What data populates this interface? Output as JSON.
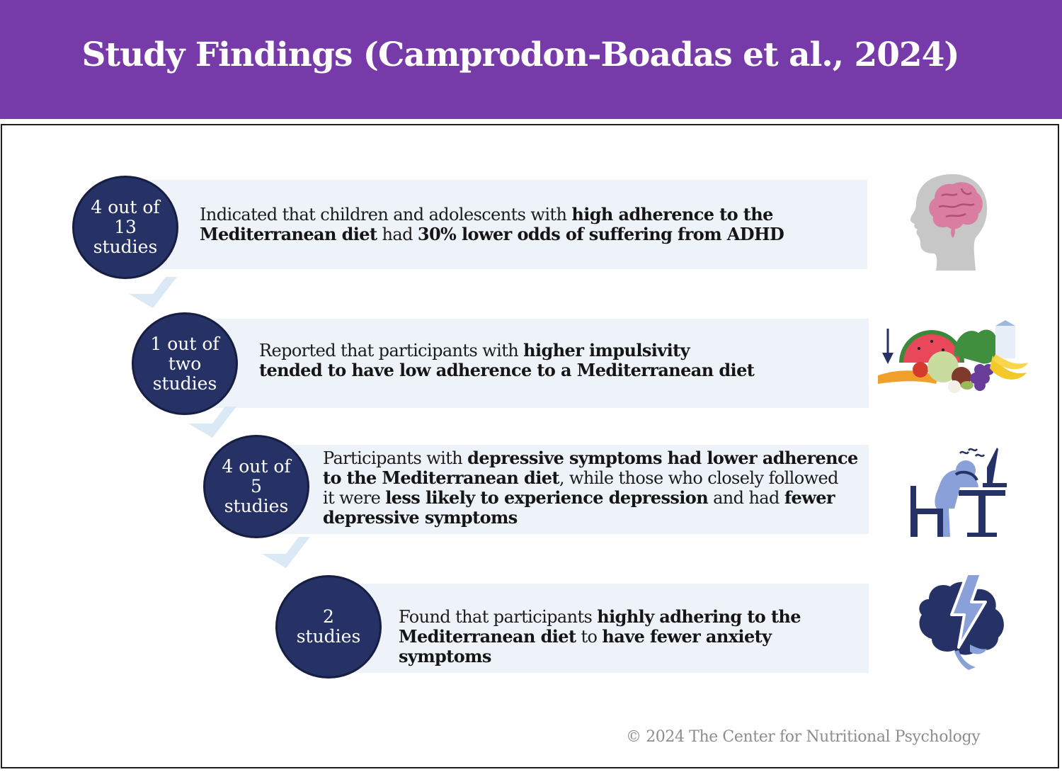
{
  "header": {
    "title": "Study Findings (Camprodon-Boadas et al., 2024)"
  },
  "findings": [
    {
      "count_lines": [
        "4 out of",
        "13",
        "studies"
      ],
      "segments": [
        {
          "text": "Indicated that children and adolescents with ",
          "style": "plain"
        },
        {
          "text": "high adherence to the",
          "style": "bold"
        },
        {
          "text": "\n",
          "style": "break"
        },
        {
          "text": "Mediterranean diet",
          "style": "bold"
        },
        {
          "text": " had ",
          "style": "plain"
        },
        {
          "text": "30% lower odds of suffering from ADHD",
          "style": "highlight"
        }
      ],
      "icon": "child-head-brain-icon"
    },
    {
      "count_lines": [
        "1 out of",
        "two",
        "studies"
      ],
      "segments": [
        {
          "text": "Reported that participants with ",
          "style": "plain"
        },
        {
          "text": "higher impulsivity",
          "style": "highlight"
        },
        {
          "text": "\n",
          "style": "break"
        },
        {
          "text": "tended to have low adherence to a Mediterranean diet",
          "style": "highlight"
        }
      ],
      "icon": "mediterranean-food-icon"
    },
    {
      "count_lines": [
        "4 out of",
        "5",
        "studies"
      ],
      "segments": [
        {
          "text": "Participants with ",
          "style": "plain"
        },
        {
          "text": "depressive symptoms",
          "style": "highlight"
        },
        {
          "text": " had lower adherence",
          "style": "bold"
        },
        {
          "text": "\n",
          "style": "break"
        },
        {
          "text": "to the Mediterranean diet",
          "style": "bold"
        },
        {
          "text": ", while those who closely followed",
          "style": "plain"
        },
        {
          "text": "\n",
          "style": "break"
        },
        {
          "text": "it were ",
          "style": "plain"
        },
        {
          "text": "less likely to experience depression",
          "style": "highlight"
        },
        {
          "text": " and had ",
          "style": "plain"
        },
        {
          "text": "fewer",
          "style": "highlight"
        },
        {
          "text": "\n",
          "style": "break"
        },
        {
          "text": "depressive symptoms",
          "style": "highlight"
        }
      ],
      "icon": "depressed-person-desk-icon"
    },
    {
      "count_lines": [
        "2",
        "studies"
      ],
      "segments": [
        {
          "text": "Found that participants ",
          "style": "plain"
        },
        {
          "text": "highly adhering to the",
          "style": "bold"
        },
        {
          "text": "\n",
          "style": "break"
        },
        {
          "text": "Mediterranean diet",
          "style": "bold"
        },
        {
          "text": " to ",
          "style": "plain"
        },
        {
          "text": "have fewer anxiety symptoms",
          "style": "highlight"
        }
      ],
      "icon": "brain-lightning-icon"
    }
  ],
  "footer": {
    "copyright": "© 2024 The Center for Nutritional Psychology"
  },
  "colors": {
    "header_bg": "#773aa9",
    "circle_fill": "#263266",
    "band_fill": "#eef3fa",
    "highlight_text": "#1f5e97",
    "chevron": "#dbe8f6"
  }
}
